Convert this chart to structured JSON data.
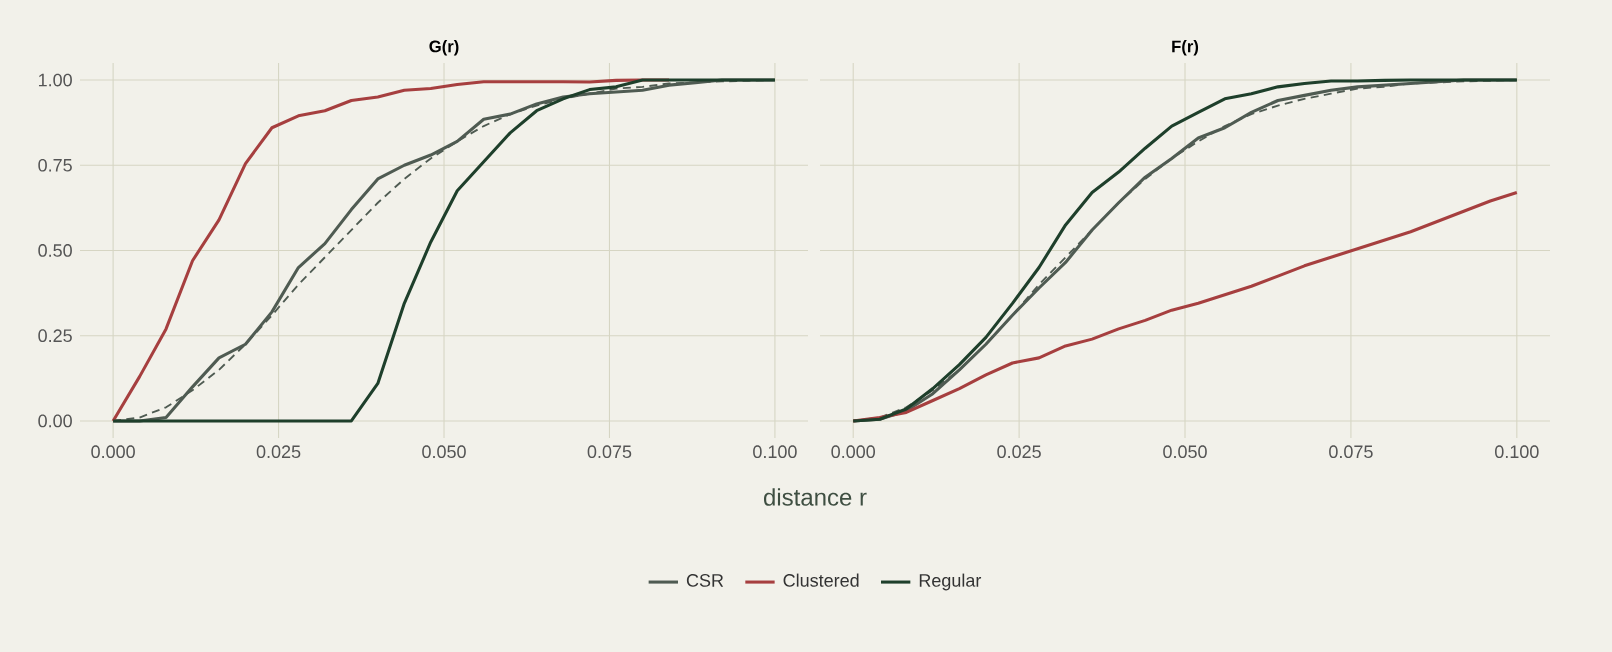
{
  "chart_data": [
    {
      "type": "line",
      "title": "G(r)",
      "xlabel": "distance r",
      "legend": "bottom",
      "grid": true,
      "x": [
        0,
        0.004,
        0.008,
        0.012,
        0.016,
        0.02,
        0.024,
        0.028,
        0.032,
        0.036,
        0.04,
        0.044,
        0.048,
        0.052,
        0.056,
        0.06,
        0.064,
        0.068,
        0.072,
        0.076,
        0.08,
        0.084,
        0.088,
        0.092,
        0.096,
        0.1
      ],
      "xlim": [
        -0.005,
        0.105
      ],
      "ylim": [
        -0.05,
        1.05
      ],
      "xticks": [
        {
          "value": 0,
          "label": "0.000"
        },
        {
          "value": 0.025,
          "label": "0.025"
        },
        {
          "value": 0.05,
          "label": "0.050"
        },
        {
          "value": 0.075,
          "label": "0.075"
        },
        {
          "value": 0.1,
          "label": "0.100"
        }
      ],
      "yticks": [
        {
          "value": 0,
          "label": "0.00"
        },
        {
          "value": 0.25,
          "label": "0.25"
        },
        {
          "value": 0.5,
          "label": "0.50"
        },
        {
          "value": 0.75,
          "label": "0.75"
        },
        {
          "value": 1,
          "label": "1.00"
        }
      ],
      "series": [
        {
          "color": "#4f5b52",
          "line_style": "dashed",
          "values": [
            0,
            0.01,
            0.04,
            0.09,
            0.15,
            0.225,
            0.31,
            0.4,
            0.48,
            0.56,
            0.64,
            0.71,
            0.77,
            0.82,
            0.865,
            0.9,
            0.925,
            0.945,
            0.96,
            0.975,
            0.98,
            0.99,
            0.993,
            0.996,
            0.998,
            1
          ]
        },
        {
          "name": "CSR",
          "color": "#4f5b52",
          "values": [
            0,
            0,
            0.01,
            0.1,
            0.185,
            0.225,
            0.32,
            0.45,
            0.52,
            0.62,
            0.71,
            0.75,
            0.78,
            0.82,
            0.885,
            0.9,
            0.93,
            0.95,
            0.96,
            0.965,
            0.97,
            0.985,
            0.992,
            1,
            1,
            1
          ]
        },
        {
          "name": "Clustered",
          "color": "#a63f3f",
          "values": [
            0,
            0.13,
            0.27,
            0.47,
            0.59,
            0.755,
            0.86,
            0.895,
            0.91,
            0.94,
            0.95,
            0.97,
            0.975,
            0.987,
            0.995,
            0.995,
            0.995,
            0.995,
            0.994,
            0.999,
            1,
            1,
            null,
            null,
            null,
            null
          ]
        },
        {
          "name": "Regular",
          "color": "#1e3f2b",
          "values": [
            0,
            0,
            0,
            0,
            0,
            0,
            0,
            0,
            0,
            0,
            0.11,
            0.345,
            0.525,
            0.675,
            0.76,
            0.845,
            0.91,
            0.945,
            0.972,
            0.98,
            1,
            1,
            1,
            1,
            1,
            1
          ]
        }
      ]
    },
    {
      "type": "line",
      "title": "F(r)",
      "grid": true,
      "tick_labels": "x",
      "x": [
        0,
        0.004,
        0.008,
        0.012,
        0.016,
        0.02,
        0.024,
        0.028,
        0.032,
        0.036,
        0.04,
        0.044,
        0.048,
        0.052,
        0.056,
        0.06,
        0.064,
        0.068,
        0.072,
        0.076,
        0.08,
        0.084,
        0.088,
        0.092,
        0.096,
        0.1
      ],
      "xlim": [
        -0.005,
        0.105
      ],
      "ylim": [
        -0.05,
        1.05
      ],
      "xticks": [
        {
          "value": 0,
          "label": "0.000"
        },
        {
          "value": 0.025,
          "label": "0.025"
        },
        {
          "value": 0.05,
          "label": "0.050"
        },
        {
          "value": 0.075,
          "label": "0.075"
        },
        {
          "value": 0.1,
          "label": "0.100"
        }
      ],
      "yticks": [
        {
          "value": 0,
          "label": null
        },
        {
          "value": 0.25,
          "label": null
        },
        {
          "value": 0.5,
          "label": null
        },
        {
          "value": 0.75,
          "label": null
        },
        {
          "value": 1,
          "label": null
        }
      ],
      "series": [
        {
          "color": "#4f5b52",
          "line_style": "dashed",
          "values": [
            0,
            0.01,
            0.04,
            0.09,
            0.15,
            0.225,
            0.31,
            0.4,
            0.48,
            0.56,
            0.64,
            0.71,
            0.77,
            0.82,
            0.865,
            0.9,
            0.925,
            0.945,
            0.96,
            0.975,
            0.98,
            0.99,
            0.993,
            0.996,
            0.998,
            1
          ]
        },
        {
          "color": "#4f5b52",
          "values": [
            0,
            0.005,
            0.03,
            0.08,
            0.15,
            0.225,
            0.31,
            0.39,
            0.465,
            0.56,
            0.64,
            0.715,
            0.77,
            0.83,
            0.86,
            0.905,
            0.94,
            0.955,
            0.97,
            0.98,
            0.985,
            0.99,
            0.995,
            1,
            1,
            1
          ]
        },
        {
          "color": "#a63f3f",
          "values": [
            0,
            0.01,
            0.025,
            0.06,
            0.095,
            0.135,
            0.17,
            0.185,
            0.22,
            0.24,
            0.27,
            0.295,
            0.325,
            0.345,
            0.37,
            0.395,
            0.425,
            0.455,
            0.48,
            0.505,
            0.53,
            0.555,
            0.585,
            0.615,
            0.645,
            0.67
          ]
        },
        {
          "color": "#1e3f2b",
          "values": [
            0,
            0.005,
            0.035,
            0.095,
            0.165,
            0.245,
            0.345,
            0.45,
            0.575,
            0.67,
            0.73,
            0.8,
            0.865,
            0.905,
            0.945,
            0.96,
            0.98,
            0.99,
            0.997,
            0.997,
            0.999,
            1,
            1,
            1,
            1,
            1
          ]
        }
      ]
    }
  ]
}
